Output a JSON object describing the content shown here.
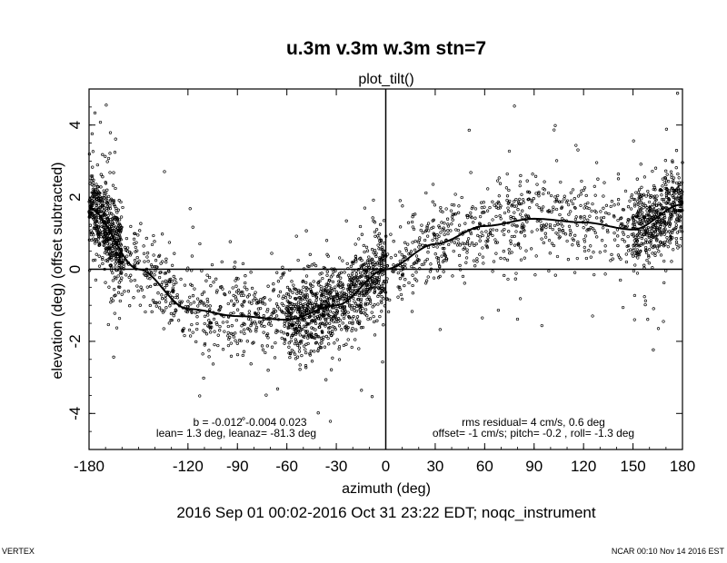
{
  "chart_data": {
    "type": "scatter",
    "title": "u.3m v.3m w.3m stn=7",
    "subtitle": "plot_tilt()",
    "xlabel": "azimuth (deg)",
    "ylabel": "elevation (deg)  (offset subtracted)",
    "xlim": [
      -180,
      180
    ],
    "ylim": [
      -5,
      5
    ],
    "x_ticks": [
      -180,
      -120,
      -90,
      -60,
      -30,
      0,
      30,
      60,
      90,
      120,
      150,
      180
    ],
    "y_ticks": [
      -4,
      -2,
      0,
      2,
      4
    ],
    "zero_lines": true,
    "grid": false,
    "fit_curve": {
      "x": [
        -180,
        -150,
        -120,
        -90,
        -60,
        -30,
        0,
        30,
        60,
        90,
        120,
        150,
        180
      ],
      "y": [
        1.7,
        0.0,
        -1.1,
        -1.3,
        -1.4,
        -1.0,
        0.0,
        0.7,
        1.2,
        1.4,
        1.3,
        1.1,
        1.8
      ]
    },
    "annotations": {
      "left_line1": "b = -0.012 -0.004  0.023",
      "left_line2": "lean= 1.3 deg, leanaz= -81.3 deg",
      "right_line1": "rms residual= 4 cm/s, 0.6 deg",
      "right_line2": "offset= -1 cm/s; pitch= -0.2 , roll= -1.3 deg"
    },
    "time_range": "2016 Sep 01 00:02-2016 Oct 31 23:22 EDT; noqc_instrument"
  },
  "footer": {
    "left": "VERTEX",
    "right": "NCAR 00:10 Nov 14 2016 EST"
  }
}
